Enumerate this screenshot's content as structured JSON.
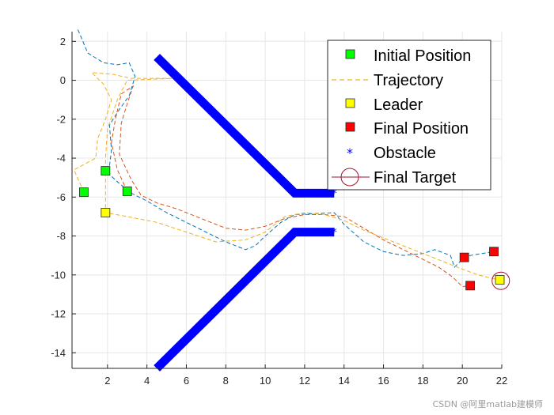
{
  "chart_data": {
    "type": "line",
    "xlim": [
      0.2,
      22
    ],
    "ylim": [
      -14.8,
      2.5
    ],
    "xticks": [
      2,
      4,
      6,
      8,
      10,
      12,
      14,
      16,
      18,
      20,
      22
    ],
    "yticks": [
      2,
      0,
      -2,
      -4,
      -6,
      -8,
      -10,
      -12,
      -14
    ],
    "grid": true,
    "legend": {
      "placement": "top-right",
      "entries": [
        "Initial Position",
        "Trajectory",
        "Leader",
        "Final Position",
        "Obstacle",
        "Final Target"
      ]
    },
    "colors": {
      "initial": "#00ff00",
      "leader": "#ffff00",
      "final": "#ff0000",
      "obstacle": "#0000ff",
      "target": "#a2142f",
      "traj_blue": "#0072bd",
      "traj_orange": "#d95319",
      "traj_yellow": "#edb120"
    },
    "initial_positions": [
      [
        0.8,
        -5.75
      ],
      [
        1.9,
        -4.65
      ],
      [
        3.0,
        -5.7
      ]
    ],
    "leader_start": [
      1.9,
      -6.8
    ],
    "final_positions": [
      [
        20.1,
        -9.1
      ],
      [
        20.4,
        -10.55
      ],
      [
        21.6,
        -8.8
      ]
    ],
    "leader_final": [
      21.9,
      -10.25
    ],
    "final_target": [
      21.95,
      -10.3
    ],
    "obstacles": [
      [
        [
          4.5,
          1.2
        ],
        [
          11.5,
          -5.8
        ],
        [
          13.5,
          -5.8
        ]
      ],
      [
        [
          4.5,
          -14.8
        ],
        [
          11.5,
          -7.8
        ],
        [
          13.5,
          -7.8
        ]
      ]
    ],
    "trajectories": [
      {
        "color_key": "traj_blue",
        "points": [
          [
            0.5,
            2.6
          ],
          [
            1.0,
            1.4
          ],
          [
            1.8,
            0.9
          ],
          [
            2.5,
            0.8
          ],
          [
            3.1,
            0.9
          ],
          [
            3.4,
            0.2
          ],
          [
            3.1,
            -0.8
          ],
          [
            2.6,
            -1.5
          ],
          [
            2.1,
            -2.3
          ],
          [
            2.2,
            -3.6
          ],
          [
            2.1,
            -4.4
          ],
          [
            1.9,
            -4.65
          ],
          [
            2.6,
            -5.3
          ],
          [
            3.2,
            -5.8
          ],
          [
            4.0,
            -6.2
          ],
          [
            5.0,
            -6.8
          ],
          [
            6.0,
            -7.3
          ],
          [
            7.0,
            -7.8
          ],
          [
            8.0,
            -8.3
          ],
          [
            9.0,
            -8.7
          ],
          [
            9.5,
            -8.5
          ],
          [
            10.0,
            -8.0
          ],
          [
            10.8,
            -7.3
          ],
          [
            11.5,
            -6.9
          ],
          [
            12.5,
            -6.85
          ],
          [
            13.5,
            -6.8
          ],
          [
            14.0,
            -7.4
          ],
          [
            15.0,
            -8.3
          ],
          [
            16.0,
            -8.8
          ],
          [
            17.0,
            -9.0
          ],
          [
            18.0,
            -8.9
          ],
          [
            18.6,
            -8.7
          ],
          [
            19.4,
            -9.0
          ],
          [
            19.6,
            -9.6
          ],
          [
            20.0,
            -9.2
          ],
          [
            20.4,
            -9.0
          ],
          [
            21.0,
            -8.9
          ],
          [
            21.6,
            -8.8
          ]
        ]
      },
      {
        "color_key": "traj_orange",
        "points": [
          [
            3.0,
            -5.7
          ],
          [
            2.5,
            -4.6
          ],
          [
            2.2,
            -3.2
          ],
          [
            2.4,
            -2.0
          ],
          [
            2.7,
            -0.7
          ],
          [
            3.3,
            -0.3
          ],
          [
            3.0,
            -1.2
          ],
          [
            2.7,
            -2.2
          ],
          [
            2.6,
            -3.8
          ],
          [
            3.2,
            -5.1
          ],
          [
            3.7,
            -5.9
          ],
          [
            4.5,
            -6.3
          ],
          [
            5.5,
            -6.6
          ],
          [
            7.0,
            -7.2
          ],
          [
            8.0,
            -7.6
          ],
          [
            9.0,
            -7.7
          ],
          [
            10.0,
            -7.5
          ],
          [
            11.0,
            -7.1
          ],
          [
            12.0,
            -6.9
          ],
          [
            13.0,
            -6.9
          ],
          [
            14.0,
            -7.0
          ],
          [
            15.0,
            -7.6
          ],
          [
            16.0,
            -8.2
          ],
          [
            17.0,
            -8.7
          ],
          [
            18.0,
            -9.2
          ],
          [
            18.8,
            -9.6
          ],
          [
            19.5,
            -10.1
          ],
          [
            20.0,
            -10.6
          ],
          [
            20.4,
            -10.55
          ]
        ]
      },
      {
        "color_key": "traj_yellow",
        "points": [
          [
            0.8,
            -5.75
          ],
          [
            0.3,
            -4.6
          ],
          [
            1.4,
            -4.0
          ],
          [
            1.5,
            -3.0
          ],
          [
            1.9,
            -2.0
          ],
          [
            2.2,
            -1.0
          ],
          [
            1.8,
            -0.2
          ],
          [
            1.2,
            0.4
          ],
          [
            2.3,
            0.3
          ],
          [
            3.2,
            0.1
          ],
          [
            5.3,
            0.1
          ],
          [
            3.0,
            0.0
          ],
          [
            2.5,
            -1.0
          ],
          [
            2.0,
            -2.5
          ],
          [
            1.9,
            -4.0
          ],
          [
            1.9,
            -6.0
          ],
          [
            1.9,
            -6.8
          ],
          [
            3.0,
            -7.0
          ],
          [
            4.5,
            -7.3
          ],
          [
            6.0,
            -7.8
          ],
          [
            7.5,
            -8.3
          ],
          [
            9.0,
            -8.2
          ],
          [
            10.0,
            -7.8
          ],
          [
            11.0,
            -7.0
          ],
          [
            12.0,
            -6.8
          ],
          [
            13.0,
            -6.9
          ],
          [
            14.0,
            -7.2
          ],
          [
            15.0,
            -7.7
          ],
          [
            16.0,
            -8.1
          ],
          [
            17.0,
            -8.5
          ],
          [
            18.0,
            -8.9
          ],
          [
            19.0,
            -9.3
          ],
          [
            20.0,
            -9.7
          ],
          [
            20.8,
            -10.0
          ],
          [
            21.4,
            -10.15
          ],
          [
            21.9,
            -10.25
          ]
        ]
      }
    ]
  },
  "watermark": "CSDN @阿里matlab建模师"
}
